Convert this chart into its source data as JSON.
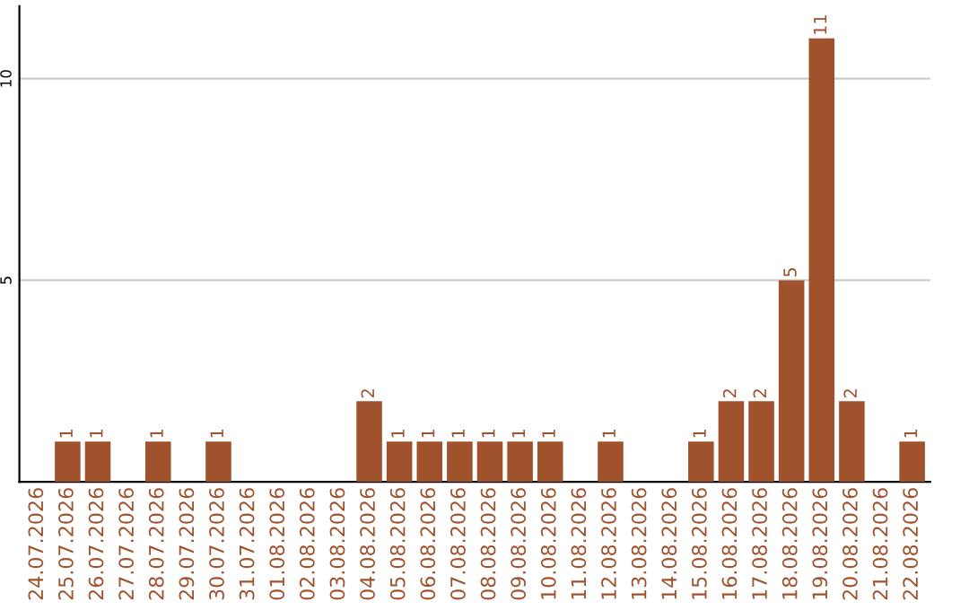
{
  "chart_data": {
    "type": "bar",
    "categories": [
      "24.07.2026",
      "25.07.2026",
      "26.07.2026",
      "27.07.2026",
      "28.07.2026",
      "29.07.2026",
      "30.07.2026",
      "31.07.2026",
      "01.08.2026",
      "02.08.2026",
      "03.08.2026",
      "04.08.2026",
      "05.08.2026",
      "06.08.2026",
      "07.08.2026",
      "08.08.2026",
      "09.08.2026",
      "10.08.2026",
      "11.08.2026",
      "12.08.2026",
      "13.08.2026",
      "14.08.2026",
      "15.08.2026",
      "16.08.2026",
      "17.08.2026",
      "18.08.2026",
      "19.08.2026",
      "20.08.2026",
      "21.08.2026",
      "22.08.2026"
    ],
    "values": [
      0,
      1,
      1,
      0,
      1,
      0,
      1,
      0,
      0,
      0,
      0,
      2,
      1,
      1,
      1,
      1,
      1,
      1,
      0,
      1,
      0,
      0,
      1,
      2,
      2,
      5,
      11,
      2,
      0,
      1
    ],
    "value_labels": [
      null,
      "1",
      "1",
      null,
      "1",
      null,
      "1",
      null,
      null,
      null,
      null,
      "2",
      "1",
      "1",
      "1",
      "1",
      "1",
      "1",
      null,
      "1",
      null,
      null,
      "1",
      "2",
      "2",
      "5",
      "11",
      "2",
      null,
      "1"
    ],
    "color": "#a0522d",
    "ylim": [
      0,
      11.8
    ],
    "yticks": [
      5,
      10
    ],
    "grid": "y"
  }
}
